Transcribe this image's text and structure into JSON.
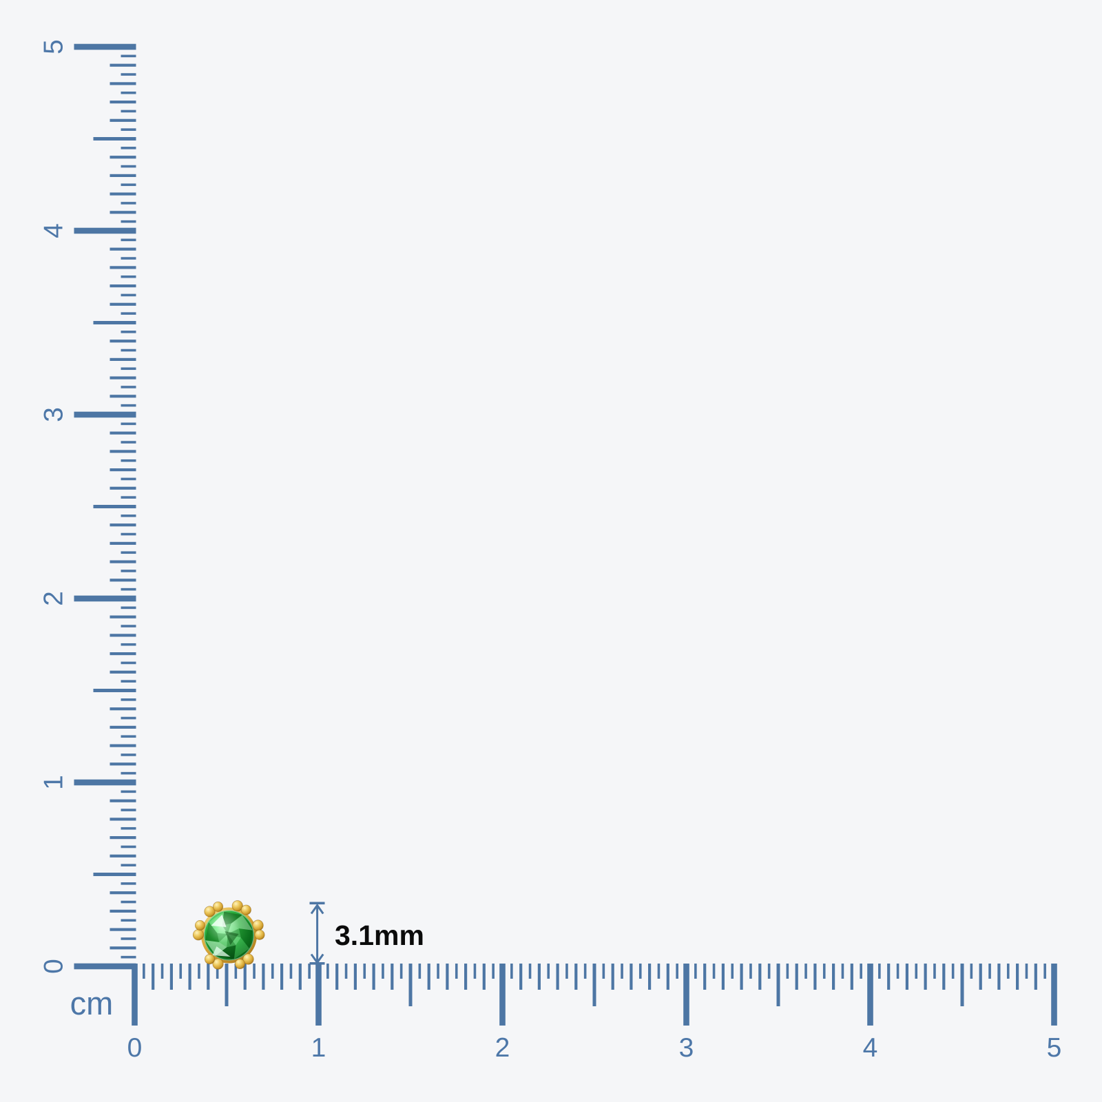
{
  "scene": {
    "background_color": "#f5f6f8",
    "ruler_color": "#4d76a4",
    "ruler_label_color": "#4d77a8",
    "annotation_text_color": "#0b0b0b"
  },
  "vertical_ruler": {
    "unit_label": "cm",
    "tick_labels": [
      "0",
      "1",
      "2",
      "3",
      "4",
      "5"
    ]
  },
  "horizontal_ruler": {
    "tick_labels": [
      "0",
      "1",
      "2",
      "3",
      "4",
      "5"
    ]
  },
  "measurement": {
    "value_label": "3.1mm"
  },
  "gem": {
    "stone_color": "#1d9e2e",
    "stone_dark_color": "#065612",
    "stone_light_color": "#e7ffe9",
    "metal_color": "#d9ac3c"
  }
}
